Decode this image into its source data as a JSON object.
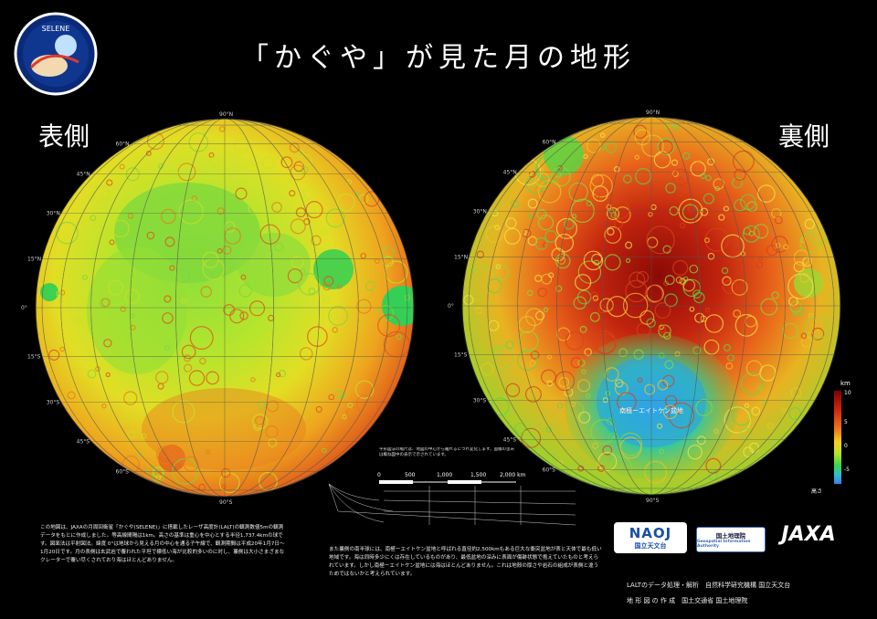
{
  "title": "「かぐや」が見た月の地形",
  "near_side_label": "表側",
  "far_side_label": "裏側",
  "mission_logo_text": "SELENE",
  "lat_ticks": [
    "90°N",
    "60°N",
    "45°N",
    "30°N",
    "15°N",
    "0°",
    "15°S",
    "30°S",
    "45°S",
    "60°S",
    "90°S"
  ],
  "colorbar": {
    "unit": "km",
    "ticks": [
      "10",
      "5",
      "0",
      "-5"
    ],
    "low_label": "高さ",
    "colors": [
      "#7a0000",
      "#d42a10",
      "#f07a1a",
      "#f5d020",
      "#b5e32a",
      "#3ad94a",
      "#30c0c8",
      "#3a7ff0"
    ]
  },
  "scale_bar": {
    "labels": [
      "0",
      "500",
      "1,000",
      "1,500",
      "2,000 km"
    ],
    "note": "字形図法の縮尺は、地図の中心から離れるにつれ変化します。面積の歪みは概ね図中の表示で示されています。"
  },
  "far_region_label": "南極ーエイトケン盆地",
  "description_left": "この地図は、JAXAの月周回衛星「かぐや(SELENE)」に搭載したレーザ高度計(LALT)の観測数値5mの観測データをもとに作成しました。等高線間隔は1km。高さの基準は重心を中心とする半径1,737.4kmの球です。図面法は平射図法。緯度 0°は地球から見える月の中心を通る子午線で、観測期間は平成20年1月7日〜1月20日です。月の表側は玄武岩で覆われた平坦で標低い海が比較的多いのに対し、裏側は大小さまざまなクレーターで覆い尽くされており海はほとんどありません。",
  "description_right": "また裏側の南半球には、南極ーエイトケン盆地と呼ばれる直径約2,500kmもある巨大な衝突盆地が表と天体で最も低い地域です。海は同時多少にくは存在しているものがあり、最低盆地の深みに表面が傷跡状態で抱えていたものと考えられています。しかし南極ーエイトケン盆地には海はほとんどありません。これは地殻の厚さや岩石の組成が表側と違うためではないかと考えられています。",
  "credits": [
    "LALTのデータ処理・解析　自然科学研究機構 国立天文台",
    "地 形 図 の 作 成　国土交通省 国土地理院"
  ],
  "logo_naoj_text": "NAOJ",
  "logo_naoj_sub": "国立天文台",
  "logo_gsi_text": "国土地理院",
  "logo_gsi_sub": "Geospatial Information Authority",
  "logo_jaxa_text": "JAXA"
}
